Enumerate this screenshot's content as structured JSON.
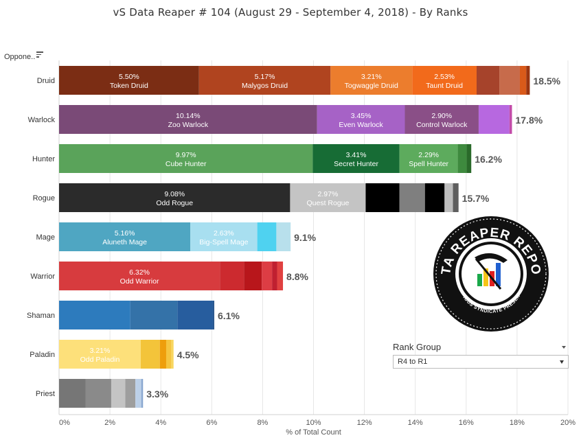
{
  "title": "vS Data Reaper #  104 (August 29 - September 4, 2018) - By Ranks",
  "sort_header": "Oppone..",
  "rank_group": {
    "title": "Rank Group",
    "selected": "R4 to R1"
  },
  "logo": {
    "text": "DATA REAPER REPORT",
    "subtext": "VICIOUS SYNDICATE PRESENTS"
  },
  "chart_data": {
    "type": "bar",
    "orientation": "horizontal",
    "stacked": true,
    "title": "vS Data Reaper #  104 (August 29 - September 4, 2018) - By Ranks",
    "xlabel": "% of Total Count",
    "xlim": [
      0,
      20
    ],
    "xticks": [
      "0%",
      "2%",
      "4%",
      "6%",
      "8%",
      "10%",
      "12%",
      "14%",
      "16%",
      "18%",
      "20%"
    ],
    "grid": true,
    "categories": [
      "Druid",
      "Warlock",
      "Hunter",
      "Rogue",
      "Mage",
      "Warrior",
      "Shaman",
      "Paladin",
      "Priest"
    ],
    "totals": [
      "18.5%",
      "17.8%",
      "16.2%",
      "15.7%",
      "9.1%",
      "8.8%",
      "6.1%",
      "4.5%",
      "3.3%"
    ],
    "rows": [
      {
        "class": "Druid",
        "segments": [
          {
            "value": 5.5,
            "pct": "5.50%",
            "name": "Token Druid",
            "color": "#7b2d14"
          },
          {
            "value": 5.17,
            "pct": "5.17%",
            "name": "Malygos Druid",
            "color": "#b0441f"
          },
          {
            "value": 3.21,
            "pct": "3.21%",
            "name": "Togwaggle Druid",
            "color": "#ec7d2d"
          },
          {
            "value": 2.53,
            "pct": "2.53%",
            "name": "Taunt Druid",
            "color": "#f26a1b"
          },
          {
            "value": 0.9,
            "color": "#a6432b"
          },
          {
            "value": 0.8,
            "color": "#c76b4b"
          },
          {
            "value": 0.25,
            "color": "#d95a1a"
          },
          {
            "value": 0.14,
            "color": "#9b3510"
          }
        ]
      },
      {
        "class": "Warlock",
        "segments": [
          {
            "value": 10.14,
            "pct": "10.14%",
            "name": "Zoo Warlock",
            "color": "#7a4a77"
          },
          {
            "value": 3.45,
            "pct": "3.45%",
            "name": "Even Warlock",
            "color": "#a662c6"
          },
          {
            "value": 2.9,
            "pct": "2.90%",
            "name": "Control Warlock",
            "color": "#8a4f87"
          },
          {
            "value": 1.21,
            "color": "#b768e0"
          },
          {
            "value": 0.1,
            "color": "#c24aa8"
          }
        ]
      },
      {
        "class": "Hunter",
        "segments": [
          {
            "value": 9.97,
            "pct": "9.97%",
            "name": "Cube Hunter",
            "color": "#5aa35a"
          },
          {
            "value": 3.41,
            "pct": "3.41%",
            "name": "Secret Hunter",
            "color": "#176c35"
          },
          {
            "value": 2.29,
            "pct": "2.29%",
            "name": "Spell Hunter",
            "color": "#5dab5d"
          },
          {
            "value": 0.35,
            "color": "#3e8a3e"
          },
          {
            "value": 0.18,
            "color": "#2a6a2a"
          }
        ]
      },
      {
        "class": "Rogue",
        "segments": [
          {
            "value": 9.08,
            "pct": "9.08%",
            "name": "Odd Rogue",
            "color": "#2b2b2b"
          },
          {
            "value": 2.97,
            "pct": "2.97%",
            "name": "Quest Rogue",
            "color": "#c4c4c4"
          },
          {
            "value": 1.33,
            "color": "#000000"
          },
          {
            "value": 1.0,
            "color": "#7f7f7f"
          },
          {
            "value": 0.77,
            "color": "#000000"
          },
          {
            "value": 0.33,
            "color": "#bdbdbd"
          },
          {
            "value": 0.22,
            "color": "#5e5e5e"
          }
        ]
      },
      {
        "class": "Mage",
        "segments": [
          {
            "value": 5.16,
            "pct": "5.16%",
            "name": "Aluneth Mage",
            "color": "#4fa6c2"
          },
          {
            "value": 2.63,
            "pct": "2.63%",
            "name": "Big-Spell Mage",
            "color": "#a8dff0"
          },
          {
            "value": 0.75,
            "color": "#4fd2f0"
          },
          {
            "value": 0.56,
            "color": "#b8e0ec"
          }
        ]
      },
      {
        "class": "Warrior",
        "segments": [
          {
            "value": 6.32,
            "pct": "6.32%",
            "name": "Odd Warrior",
            "color": "#d73b3e"
          },
          {
            "value": 0.95,
            "color": "#cc2a2f"
          },
          {
            "value": 0.7,
            "color": "#b8161b"
          },
          {
            "value": 0.4,
            "color": "#dd3d44"
          },
          {
            "value": 0.2,
            "color": "#c02030"
          },
          {
            "value": 0.23,
            "color": "#e04040"
          }
        ]
      },
      {
        "class": "Shaman",
        "segments": [
          {
            "value": 2.8,
            "color": "#2d7bbd"
          },
          {
            "value": 1.85,
            "color": "#3472a8"
          },
          {
            "value": 1.4,
            "color": "#275d9e"
          },
          {
            "value": 0.05,
            "color": "#1e4e87"
          }
        ]
      },
      {
        "class": "Paladin",
        "segments": [
          {
            "value": 3.21,
            "pct": "3.21%",
            "name": "Odd Paladin",
            "color": "#fde07a"
          },
          {
            "value": 0.75,
            "color": "#f3c43a"
          },
          {
            "value": 0.25,
            "color": "#ee9e0c"
          },
          {
            "value": 0.2,
            "color": "#f5c540"
          },
          {
            "value": 0.09,
            "color": "#f8d760"
          }
        ]
      },
      {
        "class": "Priest",
        "segments": [
          {
            "value": 1.05,
            "color": "#767676"
          },
          {
            "value": 1.0,
            "color": "#8a8a8a"
          },
          {
            "value": 0.55,
            "color": "#c4c4c4"
          },
          {
            "value": 0.4,
            "color": "#9e9e9e"
          },
          {
            "value": 0.23,
            "color": "#bcd0e8"
          },
          {
            "value": 0.07,
            "color": "#8aa8d0"
          }
        ]
      }
    ]
  }
}
